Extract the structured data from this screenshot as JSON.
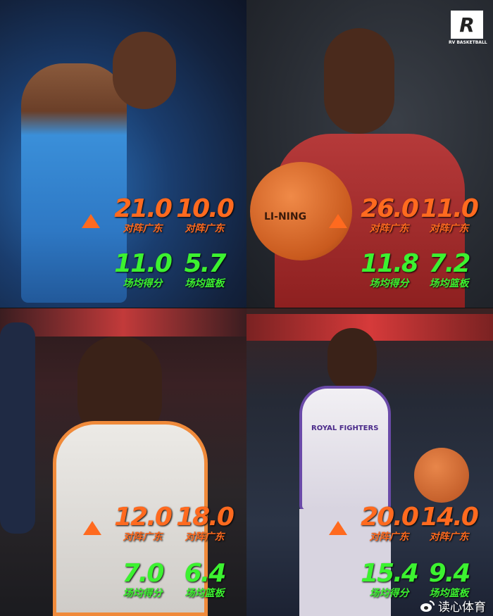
{
  "logo": {
    "mark": "R",
    "text": "RV BASKETBALL"
  },
  "watermark": {
    "icon": "weibo-icon",
    "text": "读心体育"
  },
  "colors": {
    "vs_guangdong": "#ff6a1f",
    "season_avg": "#3cf230"
  },
  "players": [
    {
      "jersey": "blue",
      "vs_points": "21.0",
      "vs_points_label": "对阵广东",
      "vs_rebounds": "10.0",
      "vs_rebounds_label": "对阵广东",
      "avg_points": "11.0",
      "avg_points_label": "场均得分",
      "avg_rebounds": "5.7",
      "avg_rebounds_label": "场均篮板"
    },
    {
      "jersey": "red",
      "ball_text": "LI-NING",
      "vs_points": "26.0",
      "vs_points_label": "对阵广东",
      "vs_rebounds": "11.0",
      "vs_rebounds_label": "对阵广东",
      "avg_points": "11.8",
      "avg_points_label": "场均得分",
      "avg_rebounds": "7.2",
      "avg_rebounds_label": "场均篮板"
    },
    {
      "jersey": "white-orange",
      "vs_points": "12.0",
      "vs_points_label": "对阵广东",
      "vs_rebounds": "18.0",
      "vs_rebounds_label": "对阵广东",
      "avg_points": "7.0",
      "avg_points_label": "场均得分",
      "avg_rebounds": "6.4",
      "avg_rebounds_label": "场均篮板"
    },
    {
      "jersey": "white-purple",
      "jersey_text": "ROYAL FIGHTERS",
      "vs_points": "20.0",
      "vs_points_label": "对阵广东",
      "vs_rebounds": "14.0",
      "vs_rebounds_label": "对阵广东",
      "avg_points": "15.4",
      "avg_points_label": "场均得分",
      "avg_rebounds": "9.4",
      "avg_rebounds_label": "场均篮板"
    }
  ]
}
